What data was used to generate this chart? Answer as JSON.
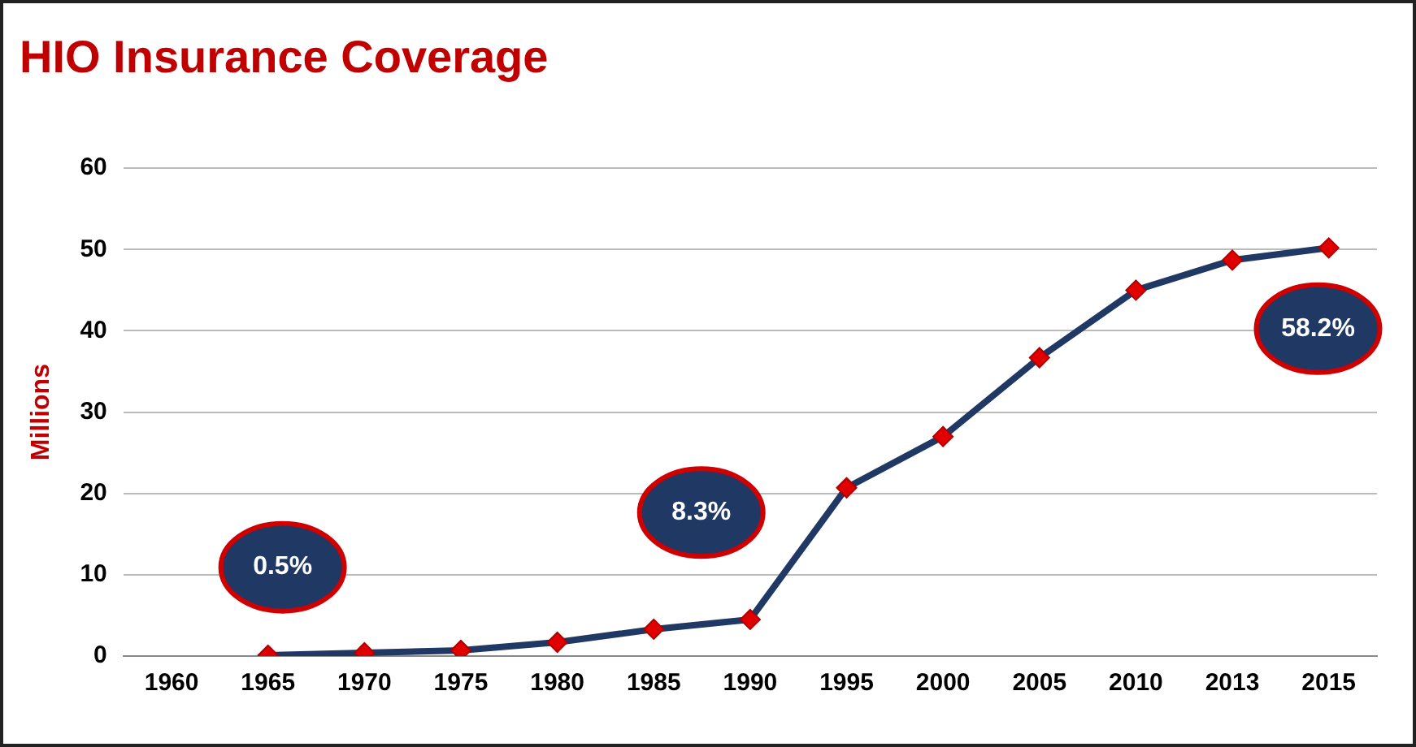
{
  "chart_data": {
    "type": "line",
    "title": "HIO Insurance Coverage",
    "ylabel": "Millions",
    "categories": [
      "1960",
      "1965",
      "1970",
      "1975",
      "1980",
      "1985",
      "1990",
      "1995",
      "2000",
      "2005",
      "2010",
      "2013",
      "2015"
    ],
    "series": [
      {
        "color": "#1f3864",
        "values": [
          null,
          0.1,
          0.4,
          0.7,
          1.7,
          3.3,
          4.5,
          20.7,
          27,
          36.7,
          45,
          48.7,
          50.2
        ]
      }
    ],
    "ylim": [
      0,
      60
    ],
    "yticks": [
      0,
      10,
      20,
      30,
      40,
      50,
      60
    ],
    "grid": "y",
    "legend": false,
    "marker": "diamond",
    "line_style": "solid",
    "annotations": [
      "0.5%",
      "8.3%",
      "58.2%"
    ]
  }
}
